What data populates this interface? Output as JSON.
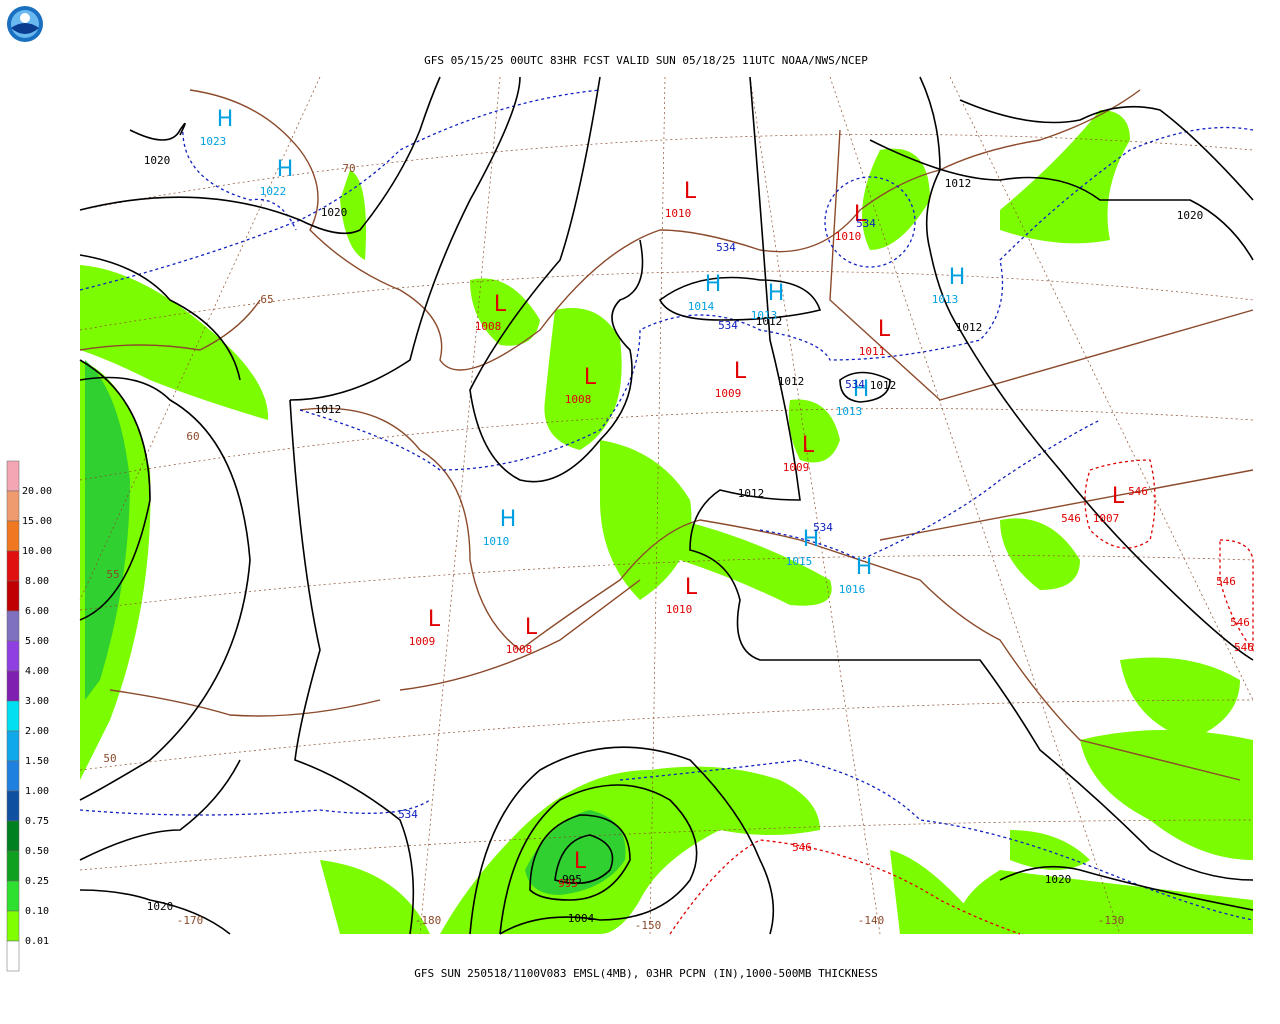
{
  "header": {
    "title": "GFS 05/15/25 00UTC 83HR FCST VALID SUN 05/18/25 11UTC NOAA/NWS/NCEP"
  },
  "footer": {
    "caption": "GFS SUN 250518/1100V083 EMSL(4MB), 03HR PCPN (IN),1000-500MB THICKNESS"
  },
  "legend": {
    "labels": [
      "20.00",
      "15.00",
      "10.00",
      "8.00",
      "6.00",
      "5.00",
      "4.00",
      "3.00",
      "2.00",
      "1.50",
      "1.00",
      "0.75",
      "0.50",
      "0.25",
      "0.10",
      "0.01"
    ]
  },
  "centers": [
    {
      "symbol": "H",
      "pressure": 1023
    },
    {
      "symbol": "H",
      "pressure": 1022
    },
    {
      "symbol": "L",
      "pressure": 1010
    },
    {
      "symbol": "L",
      "pressure": 1010
    },
    {
      "symbol": "H",
      "pressure": 1014
    },
    {
      "symbol": "H",
      "pressure": 1013
    },
    {
      "symbol": "H",
      "pressure": 1013
    },
    {
      "symbol": "L",
      "pressure": 1008
    },
    {
      "symbol": "L",
      "pressure": 1011
    },
    {
      "symbol": "L",
      "pressure": 1008
    },
    {
      "symbol": "L",
      "pressure": 1009
    },
    {
      "symbol": "H",
      "pressure": 1013
    },
    {
      "symbol": "L",
      "pressure": 1009
    },
    {
      "symbol": "H",
      "pressure": 1010
    },
    {
      "symbol": "L",
      "pressure": 1007
    },
    {
      "symbol": "H",
      "pressure": 1015
    },
    {
      "symbol": "H",
      "pressure": 1016
    },
    {
      "symbol": "L",
      "pressure": 1010
    },
    {
      "symbol": "L",
      "pressure": 1009
    },
    {
      "symbol": "L",
      "pressure": 1008
    },
    {
      "symbol": "L",
      "pressure": 995
    }
  ],
  "isobar_labels": [
    1020,
    1020,
    1012,
    1020,
    1012,
    1012,
    1012,
    1012,
    1012,
    1012,
    1020,
    1004,
    995,
    1020
  ],
  "thickness_labels": [
    534,
    534,
    534,
    534,
    534,
    534
  ],
  "thickness_546_labels": [
    546,
    546,
    546,
    546,
    546,
    546
  ],
  "grid_labels": [
    70,
    65,
    60,
    55,
    50,
    -170,
    -180,
    -150,
    -140,
    -130
  ]
}
